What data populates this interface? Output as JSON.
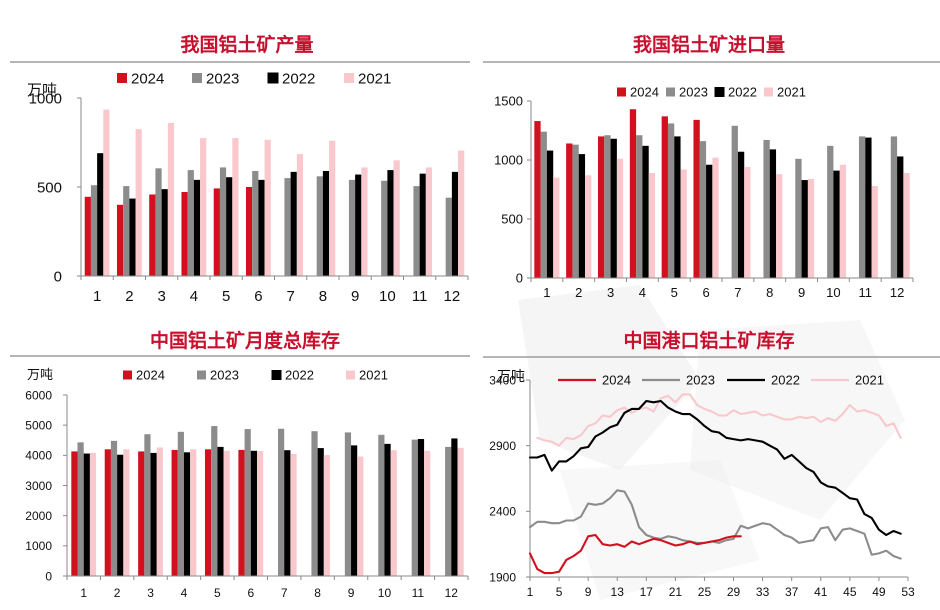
{
  "colors": {
    "2024": "#d2101e",
    "2023": "#8c8c8c",
    "2022": "#000000",
    "2021": "#f9c8cd",
    "title": "#c8102e"
  },
  "chart_data": [
    {
      "id": "production",
      "type": "bar",
      "title": "我国铝土矿产量",
      "unit": "万吨",
      "categories": [
        "1",
        "2",
        "3",
        "4",
        "5",
        "6",
        "7",
        "8",
        "9",
        "10",
        "11",
        "12"
      ],
      "ylim": [
        0,
        1000
      ],
      "yticks": [
        "0",
        "500",
        "1000"
      ],
      "grid": false,
      "legend": "top",
      "series": [
        {
          "name": "2024",
          "values": [
            445,
            400,
            458,
            472,
            492,
            500,
            null,
            null,
            null,
            null,
            null,
            null
          ]
        },
        {
          "name": "2023",
          "values": [
            510,
            505,
            605,
            595,
            610,
            590,
            550,
            560,
            540,
            535,
            505,
            440
          ]
        },
        {
          "name": "2022",
          "values": [
            690,
            435,
            488,
            540,
            555,
            540,
            585,
            590,
            570,
            595,
            575,
            585
          ]
        },
        {
          "name": "2021",
          "values": [
            935,
            825,
            860,
            775,
            775,
            765,
            685,
            760,
            610,
            650,
            610,
            705
          ]
        }
      ]
    },
    {
      "id": "imports",
      "type": "bar",
      "title": "我国铝土矿进口量",
      "categories": [
        "1",
        "2",
        "3",
        "4",
        "5",
        "6",
        "7",
        "8",
        "9",
        "10",
        "11",
        "12"
      ],
      "ylim": [
        0,
        1500
      ],
      "yticks": [
        "0",
        "500",
        "1000",
        "1500"
      ],
      "grid": false,
      "legend": "top",
      "series": [
        {
          "name": "2024",
          "values": [
            1330,
            1140,
            1200,
            1430,
            1370,
            1340,
            null,
            null,
            null,
            null,
            null,
            null
          ]
        },
        {
          "name": "2023",
          "values": [
            1240,
            1130,
            1210,
            1210,
            1310,
            1160,
            1290,
            1170,
            1010,
            1120,
            1200,
            1200
          ]
        },
        {
          "name": "2022",
          "values": [
            1080,
            1050,
            1180,
            1120,
            1200,
            960,
            1070,
            1090,
            830,
            910,
            1190,
            1030
          ]
        },
        {
          "name": "2021",
          "values": [
            850,
            870,
            1010,
            890,
            920,
            1020,
            940,
            880,
            840,
            960,
            780,
            890
          ]
        }
      ]
    },
    {
      "id": "inventory",
      "type": "bar",
      "title": "中国铝土矿月度总库存",
      "unit": "万吨",
      "categories": [
        "1",
        "2",
        "3",
        "4",
        "5",
        "6",
        "7",
        "8",
        "9",
        "10",
        "11",
        "12"
      ],
      "ylim": [
        0,
        6000
      ],
      "yticks": [
        "0",
        "1000",
        "2000",
        "3000",
        "4000",
        "5000",
        "6000"
      ],
      "grid": false,
      "legend": "top",
      "series": [
        {
          "name": "2024",
          "values": [
            4130,
            4200,
            4130,
            4180,
            4200,
            4180,
            null,
            null,
            null,
            null,
            null,
            null
          ]
        },
        {
          "name": "2023",
          "values": [
            4430,
            4480,
            4700,
            4780,
            4970,
            4870,
            4880,
            4800,
            4760,
            4680,
            4520,
            4280
          ]
        },
        {
          "name": "2022",
          "values": [
            4060,
            4020,
            4080,
            4100,
            4280,
            4150,
            4170,
            4240,
            4330,
            4380,
            4540,
            4560
          ]
        },
        {
          "name": "2021",
          "values": [
            4080,
            4200,
            4260,
            4200,
            4150,
            4140,
            4050,
            4010,
            3960,
            4170,
            4150,
            4250
          ]
        }
      ]
    },
    {
      "id": "port_inventory",
      "type": "line",
      "title": "中国港口铝土矿库存",
      "unit": "万吨",
      "ylim": [
        1900,
        3400
      ],
      "yticks": [
        "1900",
        "2400",
        "2900",
        "3400"
      ],
      "xlim": [
        1,
        53
      ],
      "xticks": [
        "1",
        "5",
        "9",
        "13",
        "17",
        "21",
        "25",
        "29",
        "33",
        "37",
        "41",
        "45",
        "49",
        "53"
      ],
      "grid": false,
      "legend": "top",
      "series": [
        {
          "name": "2024",
          "x": [
            1,
            2,
            3,
            4,
            5,
            6,
            7,
            8,
            9,
            10,
            11,
            12,
            13,
            14,
            15,
            16,
            17,
            18,
            19,
            20,
            21,
            22,
            23,
            24,
            25,
            26,
            27,
            28,
            29,
            30
          ],
          "values": [
            2080,
            1960,
            1930,
            1930,
            1940,
            2030,
            2060,
            2100,
            2210,
            2220,
            2150,
            2140,
            2150,
            2130,
            2170,
            2150,
            2170,
            2190,
            2180,
            2160,
            2140,
            2150,
            2170,
            2150,
            2160,
            2170,
            2180,
            2200,
            2210,
            2210
          ]
        },
        {
          "name": "2023",
          "x": [
            1,
            2,
            3,
            4,
            5,
            6,
            7,
            8,
            9,
            10,
            11,
            12,
            13,
            14,
            15,
            16,
            17,
            18,
            19,
            20,
            21,
            22,
            23,
            24,
            25,
            26,
            27,
            28,
            29,
            30,
            31,
            32,
            33,
            34,
            35,
            36,
            37,
            38,
            39,
            40,
            41,
            42,
            43,
            44,
            45,
            46,
            47,
            48,
            49,
            50,
            51,
            52
          ],
          "values": [
            2280,
            2320,
            2320,
            2310,
            2310,
            2330,
            2330,
            2360,
            2460,
            2450,
            2460,
            2500,
            2560,
            2550,
            2450,
            2280,
            2220,
            2200,
            2190,
            2210,
            2200,
            2180,
            2170,
            2160,
            2160,
            2170,
            2160,
            2180,
            2190,
            2290,
            2270,
            2290,
            2310,
            2300,
            2260,
            2220,
            2200,
            2160,
            2170,
            2180,
            2270,
            2280,
            2180,
            2260,
            2270,
            2250,
            2230,
            2070,
            2080,
            2100,
            2060,
            2040
          ]
        },
        {
          "name": "2022",
          "x": [
            1,
            2,
            3,
            4,
            5,
            6,
            7,
            8,
            9,
            10,
            11,
            12,
            13,
            14,
            15,
            16,
            17,
            18,
            19,
            20,
            21,
            22,
            23,
            24,
            25,
            26,
            27,
            28,
            29,
            30,
            31,
            32,
            33,
            34,
            35,
            36,
            37,
            38,
            39,
            40,
            41,
            42,
            43,
            44,
            45,
            46,
            47,
            48,
            49,
            50,
            51,
            52
          ],
          "values": [
            2810,
            2810,
            2830,
            2710,
            2780,
            2780,
            2820,
            2880,
            2890,
            2970,
            3000,
            3040,
            3060,
            3150,
            3180,
            3180,
            3240,
            3230,
            3240,
            3190,
            3160,
            3140,
            3140,
            3100,
            3050,
            3010,
            3000,
            2960,
            2950,
            2940,
            2950,
            2940,
            2930,
            2900,
            2870,
            2800,
            2830,
            2780,
            2730,
            2700,
            2620,
            2590,
            2580,
            2540,
            2500,
            2490,
            2380,
            2350,
            2260,
            2220,
            2250,
            2230
          ]
        },
        {
          "name": "2021",
          "x": [
            2,
            3,
            4,
            5,
            6,
            7,
            8,
            9,
            10,
            11,
            12,
            13,
            14,
            15,
            16,
            17,
            18,
            19,
            20,
            21,
            22,
            23,
            24,
            25,
            26,
            27,
            28,
            29,
            30,
            31,
            32,
            33,
            34,
            35,
            36,
            37,
            38,
            39,
            40,
            41,
            42,
            43,
            44,
            45,
            46,
            47,
            48,
            49,
            50,
            51,
            52
          ],
          "values": [
            2960,
            2940,
            2930,
            2900,
            2960,
            2950,
            2980,
            3050,
            3070,
            3130,
            3120,
            3170,
            3190,
            3150,
            3180,
            3190,
            3160,
            3260,
            3280,
            3230,
            3290,
            3290,
            3210,
            3180,
            3160,
            3130,
            3130,
            3170,
            3140,
            3150,
            3160,
            3130,
            3140,
            3120,
            3100,
            3100,
            3120,
            3110,
            3120,
            3080,
            3110,
            3090,
            3140,
            3210,
            3160,
            3170,
            3150,
            3130,
            3050,
            3070,
            2960
          ]
        }
      ]
    }
  ]
}
